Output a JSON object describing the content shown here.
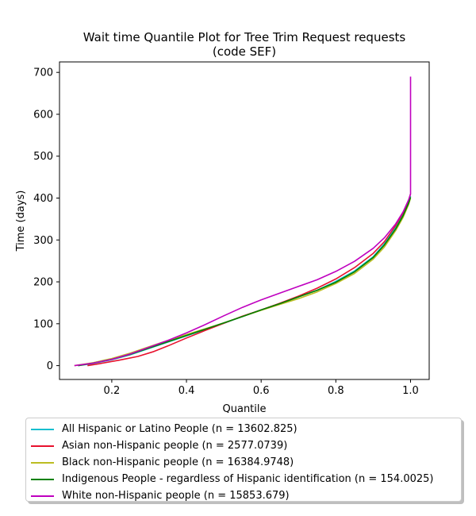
{
  "chart_data": {
    "type": "line",
    "title_line1": "Wait time Quantile Plot for Tree Trim Request  requests",
    "title_line2": "(code SEF)",
    "xlabel": "Quantile",
    "ylabel": "Time (days)",
    "xlim": [
      0.06,
      1.05
    ],
    "ylim": [
      -33,
      725
    ],
    "xticks": [
      0.2,
      0.4,
      0.6,
      0.8,
      1.0
    ],
    "xtick_labels": [
      "0.2",
      "0.4",
      "0.6",
      "0.8",
      "1.0"
    ],
    "yticks": [
      0,
      100,
      200,
      300,
      400,
      500,
      600,
      700
    ],
    "ytick_labels": [
      "0",
      "100",
      "200",
      "300",
      "400",
      "500",
      "600",
      "700"
    ],
    "grid": false,
    "legend_position": "below",
    "series": [
      {
        "name": "All Hispanic or Latino People (n = 13602.825)",
        "color": "#17becf",
        "x": [
          0.11,
          0.15,
          0.2,
          0.25,
          0.3,
          0.35,
          0.4,
          0.45,
          0.5,
          0.55,
          0.6,
          0.65,
          0.7,
          0.75,
          0.8,
          0.85,
          0.9,
          0.93,
          0.96,
          0.98,
          0.995,
          1.0
        ],
        "y": [
          0,
          5,
          14,
          26,
          41,
          56,
          71,
          86,
          101,
          117,
          133,
          148,
          164,
          180,
          201,
          226,
          260,
          291,
          330,
          362,
          392,
          405
        ]
      },
      {
        "name": "Asian non-Hispanic people (n = 2577.0739)",
        "color": "#e8112d",
        "x": [
          0.135,
          0.17,
          0.22,
          0.27,
          0.31,
          0.35,
          0.4,
          0.45,
          0.5,
          0.55,
          0.6,
          0.65,
          0.7,
          0.75,
          0.8,
          0.85,
          0.9,
          0.93,
          0.96,
          0.98,
          0.995,
          1.0
        ],
        "y": [
          0,
          5,
          13,
          22,
          33,
          47,
          66,
          84,
          101,
          118,
          133,
          149,
          166,
          185,
          207,
          234,
          268,
          296,
          334,
          365,
          395,
          410
        ]
      },
      {
        "name": "Black non-Hispanic people (n = 16384.9748)",
        "color": "#bcbd22",
        "x": [
          0.1,
          0.15,
          0.2,
          0.25,
          0.3,
          0.35,
          0.4,
          0.45,
          0.5,
          0.55,
          0.6,
          0.65,
          0.7,
          0.75,
          0.8,
          0.85,
          0.9,
          0.93,
          0.96,
          0.98,
          0.995,
          1.0
        ],
        "y": [
          0,
          7,
          17,
          30,
          45,
          60,
          74,
          88,
          102,
          117,
          132,
          146,
          160,
          176,
          196,
          220,
          254,
          283,
          322,
          354,
          385,
          400
        ]
      },
      {
        "name": "Indigenous People - regardless of Hispanic identification (n = 154.0025)",
        "color": "#008000",
        "x": [
          0.11,
          0.15,
          0.2,
          0.25,
          0.3,
          0.35,
          0.4,
          0.45,
          0.5,
          0.55,
          0.6,
          0.65,
          0.7,
          0.75,
          0.8,
          0.85,
          0.9,
          0.93,
          0.96,
          0.98,
          0.995,
          1.0
        ],
        "y": [
          0,
          6,
          15,
          27,
          42,
          57,
          72,
          87,
          102,
          117,
          133,
          148,
          164,
          180,
          199,
          224,
          258,
          288,
          326,
          358,
          388,
          402
        ]
      },
      {
        "name": "White non-Hispanic people (n = 15853.679)",
        "color": "#bf00bf",
        "x": [
          0.1,
          0.15,
          0.2,
          0.25,
          0.3,
          0.35,
          0.4,
          0.45,
          0.5,
          0.55,
          0.6,
          0.65,
          0.7,
          0.75,
          0.8,
          0.85,
          0.9,
          0.93,
          0.96,
          0.98,
          0.995,
          1.0,
          1.0
        ],
        "y": [
          0,
          6,
          15,
          28,
          44,
          60,
          78,
          98,
          119,
          139,
          157,
          173,
          189,
          205,
          225,
          249,
          280,
          305,
          338,
          367,
          396,
          410,
          690
        ]
      }
    ]
  }
}
